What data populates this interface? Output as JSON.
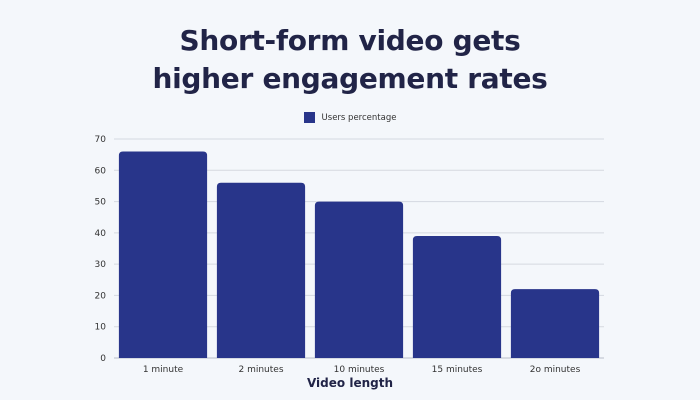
{
  "title_lines": [
    "Short-form video gets",
    "higher engagement rates"
  ],
  "chart_data": {
    "type": "bar",
    "title": "Short-form video gets higher engagement rates",
    "categories": [
      "1 minute",
      "2 minutes",
      "10 minutes",
      "15 minutes",
      "2o minutes"
    ],
    "series": [
      {
        "name": "Users percentage",
        "values": [
          66,
          56,
          50,
          39,
          22
        ]
      }
    ],
    "xlabel": "Video length",
    "ylabel": "",
    "ylim": [
      0,
      70
    ],
    "yticks": [
      0,
      10,
      20,
      30,
      40,
      50,
      60,
      70
    ],
    "grid": true,
    "legend": "top-center",
    "bar_color": "#28358a",
    "grid_color": "#d5d9e0"
  }
}
